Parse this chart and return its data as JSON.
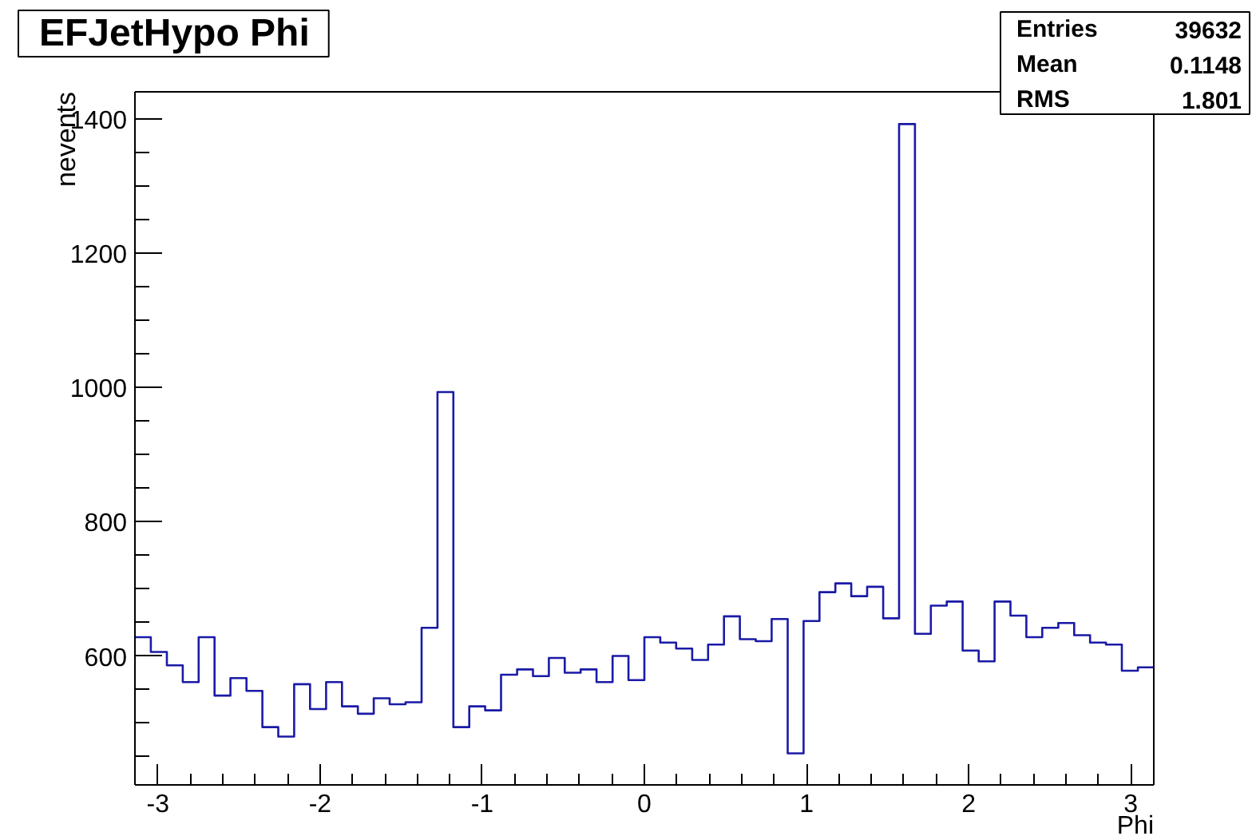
{
  "chart_data": {
    "type": "histogram",
    "title": "EFJetHypo Phi",
    "xlabel": "Phi",
    "ylabel": "nevents",
    "color": "#1a1aa6",
    "bins": [
      -3.142,
      -3.044,
      -2.945,
      -2.847,
      -2.749,
      -2.651,
      -2.553,
      -2.454,
      -2.356,
      -2.258,
      -2.16,
      -2.062,
      -1.963,
      -1.865,
      -1.767,
      -1.669,
      -1.571,
      -1.473,
      -1.374,
      -1.276,
      -1.178,
      -1.08,
      -0.982,
      -0.884,
      -0.785,
      -0.687,
      -0.589,
      -0.491,
      -0.393,
      -0.295,
      -0.196,
      -0.098,
      0,
      0.098,
      0.196,
      0.295,
      0.393,
      0.491,
      0.589,
      0.687,
      0.785,
      0.884,
      0.982,
      1.08,
      1.178,
      1.276,
      1.374,
      1.473,
      1.571,
      1.669,
      1.767,
      1.865,
      1.963,
      2.062,
      2.16,
      2.258,
      2.356,
      2.454,
      2.553,
      2.651,
      2.749,
      2.847,
      2.945,
      3.044,
      3.142
    ],
    "values": [
      628,
      606,
      586,
      561,
      628,
      541,
      567,
      548,
      494,
      480,
      558,
      521,
      561,
      525,
      514,
      537,
      528,
      531,
      642,
      993,
      494,
      525,
      519,
      572,
      580,
      570,
      597,
      575,
      580,
      561,
      600,
      564,
      628,
      620,
      611,
      594,
      617,
      659,
      625,
      622,
      655,
      455,
      652,
      695,
      708,
      689,
      703,
      656,
      1392,
      633,
      675,
      681,
      608,
      592,
      681,
      660,
      628,
      642,
      649,
      631,
      620,
      617,
      578,
      583
    ],
    "xlim": [
      -3.142,
      3.142
    ],
    "ylim": [
      408,
      1440
    ],
    "xticks": [
      -3,
      {
        "value": -2.8,
        "label": null
      },
      {
        "value": -2.6,
        "label": null
      },
      {
        "value": -2.4,
        "label": null
      },
      {
        "value": -2.2,
        "label": null
      },
      -2,
      {
        "value": -1.8,
        "label": null
      },
      {
        "value": -1.6,
        "label": null
      },
      {
        "value": -1.4,
        "label": null
      },
      {
        "value": -1.2,
        "label": null
      },
      -1,
      {
        "value": -0.8,
        "label": null
      },
      {
        "value": -0.6,
        "label": null
      },
      {
        "value": -0.4,
        "label": null
      },
      {
        "value": -0.2,
        "label": null
      },
      0,
      {
        "value": 0.2,
        "label": null
      },
      {
        "value": 0.4,
        "label": null
      },
      {
        "value": 0.6,
        "label": null
      },
      {
        "value": 0.8,
        "label": null
      },
      1,
      {
        "value": 1.2,
        "label": null
      },
      {
        "value": 1.4,
        "label": null
      },
      {
        "value": 1.6,
        "label": null
      },
      {
        "value": 1.8,
        "label": null
      },
      2,
      {
        "value": 2.2,
        "label": null
      },
      {
        "value": 2.4,
        "label": null
      },
      {
        "value": 2.6,
        "label": null
      },
      {
        "value": 2.8,
        "label": null
      },
      3
    ],
    "yticks": [
      {
        "value": 450,
        "label": null
      },
      {
        "value": 500,
        "label": null
      },
      {
        "value": 550,
        "label": null
      },
      600,
      {
        "value": 650,
        "label": null
      },
      {
        "value": 700,
        "label": null
      },
      {
        "value": 750,
        "label": null
      },
      800,
      {
        "value": 850,
        "label": null
      },
      {
        "value": 900,
        "label": null
      },
      {
        "value": 950,
        "label": null
      },
      1000,
      {
        "value": 1050,
        "label": null
      },
      {
        "value": 1100,
        "label": null
      },
      {
        "value": 1150,
        "label": null
      },
      1200,
      {
        "value": 1250,
        "label": null
      },
      {
        "value": 1300,
        "label": null
      },
      {
        "value": 1350,
        "label": null
      },
      1400
    ],
    "annotations": [
      "Entries",
      "39632",
      "Mean",
      "0.1148",
      "RMS",
      "1.801"
    ]
  }
}
